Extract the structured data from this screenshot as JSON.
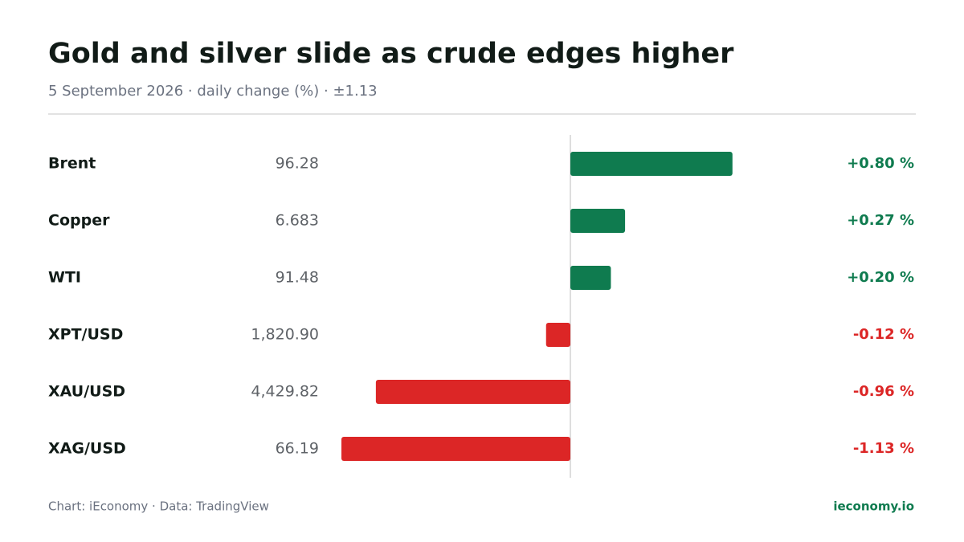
{
  "chart_data": {
    "type": "diverging-bar",
    "title": "Gold and silver slide as crude edges higher",
    "subtitle": "5 September 2026 · daily change (%) · ±1.13",
    "categories": [
      "Brent",
      "Copper",
      "WTI",
      "XPT/USD",
      "XAU/USD",
      "XAG/USD"
    ],
    "prices": [
      "96.28",
      "6.683",
      "91.48",
      "1,820.90",
      "4,429.82",
      "66.19"
    ],
    "values": [
      0.8,
      0.27,
      0.2,
      -0.12,
      -0.96,
      -1.13
    ],
    "value_labels": [
      "+0.80 %",
      "+0.27 %",
      "+0.20 %",
      "-0.12 %",
      "-0.96 %",
      "-1.13 %"
    ],
    "xlim": [
      -1.13,
      1.13
    ],
    "positive_color": "#0f7b4f",
    "negative_color": "#dc2626",
    "source": "Chart: iEconomy · Data: TradingView",
    "brand": "ieconomy.io"
  }
}
